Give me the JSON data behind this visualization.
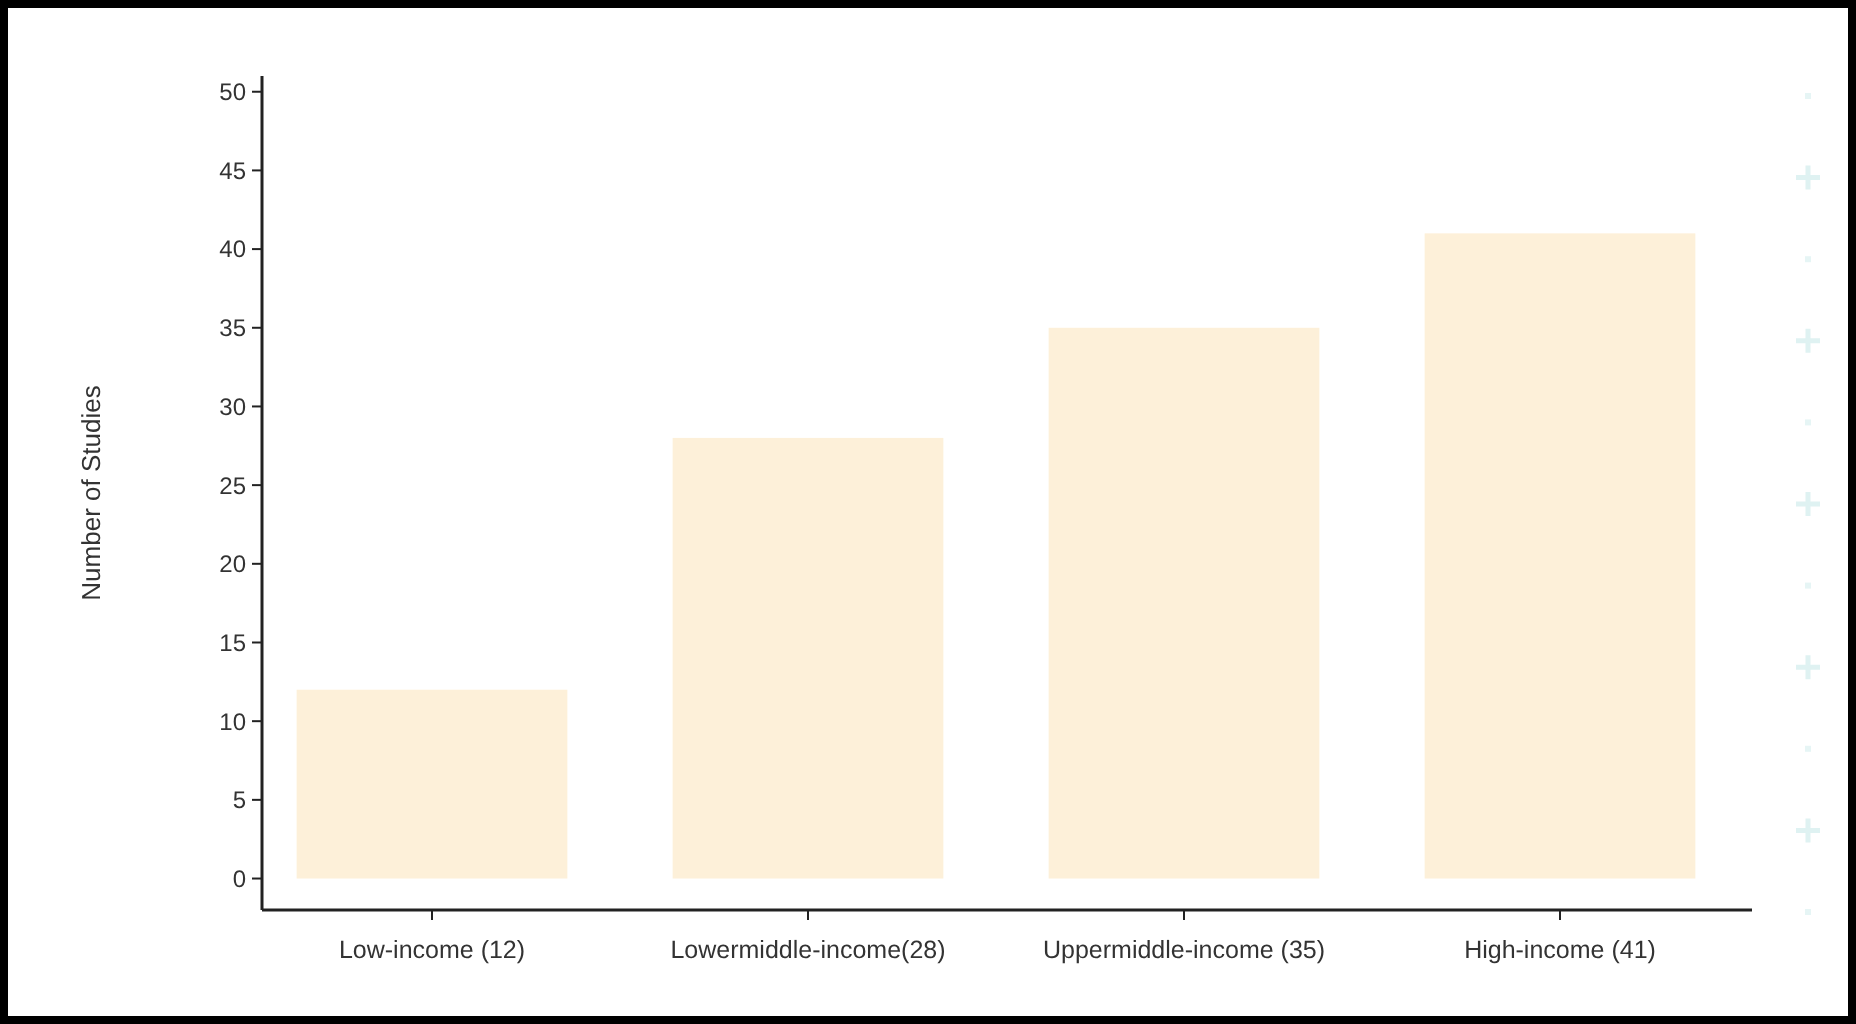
{
  "chart_data": {
    "type": "bar",
    "ylabel": "Number of Studies",
    "categories": [
      "Low-income (12)",
      "Lowermiddle-income(28)",
      "Uppermiddle-income (35)",
      "High-income (41)"
    ],
    "values": [
      12,
      28,
      35,
      41
    ],
    "color": "#fdf0d9",
    "ylim": [
      -2,
      51
    ],
    "yticks": [
      0,
      5,
      10,
      15,
      20,
      25,
      30,
      35,
      40,
      45,
      50
    ],
    "grid": false
  }
}
